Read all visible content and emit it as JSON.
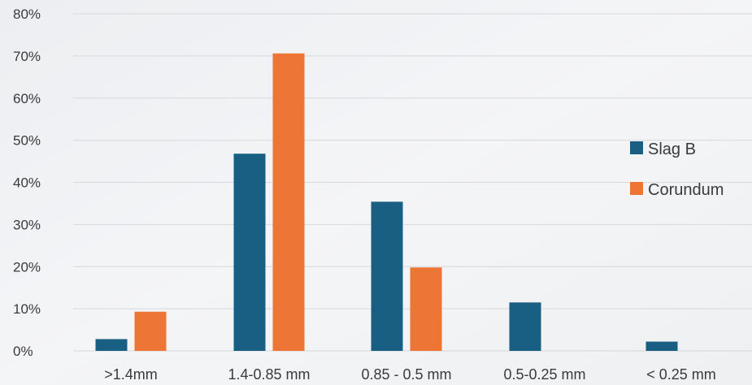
{
  "chart_data": {
    "type": "bar",
    "categories": [
      ">1.4mm",
      "1.4-0.85 mm",
      "0.85 - 0.5 mm",
      "0.5-0.25 mm",
      "< 0.25 mm"
    ],
    "series": [
      {
        "name": "Slag B",
        "color": "#195e83",
        "values": [
          2.8,
          46.8,
          35.4,
          11.5,
          2.2
        ]
      },
      {
        "name": "Corundum",
        "color": "#ed7535",
        "values": [
          9.3,
          70.6,
          19.8,
          0,
          0
        ]
      }
    ],
    "ylim": [
      0,
      80
    ],
    "yticks": [
      0,
      10,
      20,
      30,
      40,
      50,
      60,
      70,
      80
    ],
    "ytick_labels": [
      "0%",
      "10%",
      "20%",
      "30%",
      "40%",
      "50%",
      "60%",
      "70%",
      "80%"
    ],
    "grid": true,
    "legend": "right",
    "title": "",
    "xlabel": "",
    "ylabel": ""
  }
}
